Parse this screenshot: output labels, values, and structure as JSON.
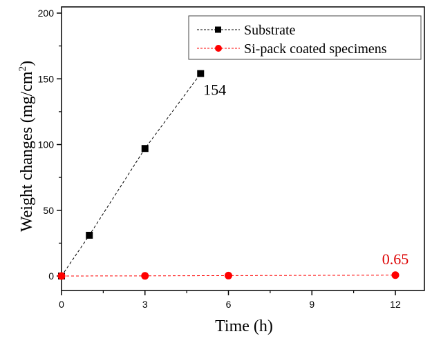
{
  "chart_data": {
    "type": "line",
    "title": "",
    "xlabel": "Time (h)",
    "ylabel_main": "Weight changes (mg/cm",
    "ylabel_sup": "2",
    "ylabel_end": ")",
    "xlim": [
      0,
      13
    ],
    "ylim": [
      -5,
      205
    ],
    "xticks": [
      0,
      3,
      6,
      9,
      12
    ],
    "xtick_labels": [
      "0",
      "3",
      "6",
      "9",
      "12"
    ],
    "xminor": [
      1.5,
      4.5,
      7.5,
      10.5
    ],
    "yticks": [
      0,
      50,
      100,
      150,
      200
    ],
    "ytick_labels": [
      "0",
      "50",
      "100",
      "150",
      "200"
    ],
    "yminor": [
      25,
      75,
      125,
      175
    ],
    "grid": false,
    "legend_position": "top-right",
    "series": [
      {
        "name": "Substrate",
        "color": "#000000",
        "marker": "square",
        "line": "dashed",
        "x": [
          0,
          1,
          3,
          5
        ],
        "y": [
          0,
          31,
          97,
          154
        ]
      },
      {
        "name": "Si-pack coated specimens",
        "color": "#ff0000",
        "marker": "circle",
        "line": "dashed",
        "x": [
          0,
          3,
          6,
          12
        ],
        "y": [
          0,
          0.1,
          0.3,
          0.65
        ]
      }
    ],
    "annotations": [
      {
        "text": "154",
        "x": 5,
        "y": 154,
        "color": "#000000"
      },
      {
        "text": "0.65",
        "x": 12,
        "y": 0.65,
        "color": "#dd0000"
      }
    ]
  }
}
